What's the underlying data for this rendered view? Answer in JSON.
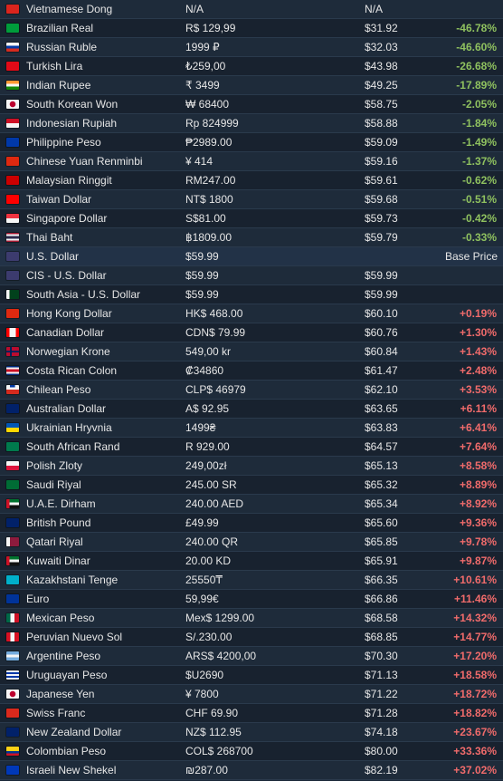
{
  "rows": [
    {
      "flag": "vn",
      "name": "Vietnamese Dong",
      "local": "N/A",
      "usd": "N/A",
      "diff": "",
      "color": "#da251d"
    },
    {
      "flag": "br",
      "name": "Brazilian Real",
      "local": "R$ 129,99",
      "usd": "$31.92",
      "diff": "-46.78%",
      "color": "#009c3b"
    },
    {
      "flag": "ru",
      "name": "Russian Ruble",
      "local": "1999 ₽",
      "usd": "$32.03",
      "diff": "-46.60%",
      "color": "#0039a6"
    },
    {
      "flag": "tr",
      "name": "Turkish Lira",
      "local": "₺259,00",
      "usd": "$43.98",
      "diff": "-26.68%",
      "color": "#e30a17"
    },
    {
      "flag": "in",
      "name": "Indian Rupee",
      "local": "₹ 3499",
      "usd": "$49.25",
      "diff": "-17.89%",
      "color": "#ff9933"
    },
    {
      "flag": "kr",
      "name": "South Korean Won",
      "local": "₩ 68400",
      "usd": "$58.75",
      "diff": "-2.05%",
      "color": "#f5f5f5"
    },
    {
      "flag": "id",
      "name": "Indonesian Rupiah",
      "local": "Rp 824999",
      "usd": "$58.88",
      "diff": "-1.84%",
      "color": "#ce1126"
    },
    {
      "flag": "ph",
      "name": "Philippine Peso",
      "local": "₱2989.00",
      "usd": "$59.09",
      "diff": "-1.49%",
      "color": "#0038a8"
    },
    {
      "flag": "cn",
      "name": "Chinese Yuan Renminbi",
      "local": "¥ 414",
      "usd": "$59.16",
      "diff": "-1.37%",
      "color": "#de2910"
    },
    {
      "flag": "my",
      "name": "Malaysian Ringgit",
      "local": "RM247.00",
      "usd": "$59.61",
      "diff": "-0.62%",
      "color": "#cc0001"
    },
    {
      "flag": "tw",
      "name": "Taiwan Dollar",
      "local": "NT$ 1800",
      "usd": "$59.68",
      "diff": "-0.51%",
      "color": "#fe0000"
    },
    {
      "flag": "sg",
      "name": "Singapore Dollar",
      "local": "S$81.00",
      "usd": "$59.73",
      "diff": "-0.42%",
      "color": "#ef3340"
    },
    {
      "flag": "th",
      "name": "Thai Baht",
      "local": "฿1809.00",
      "usd": "$59.79",
      "diff": "-0.33%",
      "color": "#2d2a4a"
    },
    {
      "flag": "us",
      "name": "U.S. Dollar",
      "local": "$59.99",
      "usd": "",
      "diff": "Base Price",
      "color": "#3c3b6e",
      "base": true
    },
    {
      "flag": "cis",
      "name": "CIS - U.S. Dollar",
      "local": "$59.99",
      "usd": "$59.99",
      "diff": "",
      "color": "#3c3b6e"
    },
    {
      "flag": "pk",
      "name": "South Asia - U.S. Dollar",
      "local": "$59.99",
      "usd": "$59.99",
      "diff": "",
      "color": "#01411c"
    },
    {
      "flag": "hk",
      "name": "Hong Kong Dollar",
      "local": "HK$ 468.00",
      "usd": "$60.10",
      "diff": "+0.19%",
      "color": "#de2910"
    },
    {
      "flag": "ca",
      "name": "Canadian Dollar",
      "local": "CDN$ 79.99",
      "usd": "$60.76",
      "diff": "+1.30%",
      "color": "#ff0000"
    },
    {
      "flag": "no",
      "name": "Norwegian Krone",
      "local": "549,00 kr",
      "usd": "$60.84",
      "diff": "+1.43%",
      "color": "#ba0c2f"
    },
    {
      "flag": "cr",
      "name": "Costa Rican Colon",
      "local": "₡34860",
      "usd": "$61.47",
      "diff": "+2.48%",
      "color": "#002b7f"
    },
    {
      "flag": "cl",
      "name": "Chilean Peso",
      "local": "CLP$ 46979",
      "usd": "$62.10",
      "diff": "+3.53%",
      "color": "#d52b1e"
    },
    {
      "flag": "au",
      "name": "Australian Dollar",
      "local": "A$ 92.95",
      "usd": "$63.65",
      "diff": "+6.11%",
      "color": "#012169"
    },
    {
      "flag": "ua",
      "name": "Ukrainian Hryvnia",
      "local": "1499₴",
      "usd": "$63.83",
      "diff": "+6.41%",
      "color": "#0057b7"
    },
    {
      "flag": "za",
      "name": "South African Rand",
      "local": "R 929.00",
      "usd": "$64.57",
      "diff": "+7.64%",
      "color": "#007a4d"
    },
    {
      "flag": "pl",
      "name": "Polish Zloty",
      "local": "249,00zł",
      "usd": "$65.13",
      "diff": "+8.58%",
      "color": "#dc143c"
    },
    {
      "flag": "sa",
      "name": "Saudi Riyal",
      "local": "245.00 SR",
      "usd": "$65.32",
      "diff": "+8.89%",
      "color": "#006c35"
    },
    {
      "flag": "ae",
      "name": "U.A.E. Dirham",
      "local": "240.00 AED",
      "usd": "$65.34",
      "diff": "+8.92%",
      "color": "#00732f"
    },
    {
      "flag": "gb",
      "name": "British Pound",
      "local": "£49.99",
      "usd": "$65.60",
      "diff": "+9.36%",
      "color": "#012169"
    },
    {
      "flag": "qa",
      "name": "Qatari Riyal",
      "local": "240.00 QR",
      "usd": "$65.85",
      "diff": "+9.78%",
      "color": "#8d1b3d"
    },
    {
      "flag": "kw",
      "name": "Kuwaiti Dinar",
      "local": "20.00 KD",
      "usd": "$65.91",
      "diff": "+9.87%",
      "color": "#007a3d"
    },
    {
      "flag": "kz",
      "name": "Kazakhstani Tenge",
      "local": "25550₸",
      "usd": "$66.35",
      "diff": "+10.61%",
      "color": "#00afca"
    },
    {
      "flag": "eu",
      "name": "Euro",
      "local": "59,99€",
      "usd": "$66.86",
      "diff": "+11.46%",
      "color": "#003399"
    },
    {
      "flag": "mx",
      "name": "Mexican Peso",
      "local": "Mex$ 1299.00",
      "usd": "$68.58",
      "diff": "+14.32%",
      "color": "#006847"
    },
    {
      "flag": "pe",
      "name": "Peruvian Nuevo Sol",
      "local": "S/.230.00",
      "usd": "$68.85",
      "diff": "+14.77%",
      "color": "#d91023"
    },
    {
      "flag": "ar",
      "name": "Argentine Peso",
      "local": "ARS$ 4200,00",
      "usd": "$70.30",
      "diff": "+17.20%",
      "color": "#74acdf"
    },
    {
      "flag": "uy",
      "name": "Uruguayan Peso",
      "local": "$U2690",
      "usd": "$71.13",
      "diff": "+18.58%",
      "color": "#0038a8"
    },
    {
      "flag": "jp",
      "name": "Japanese Yen",
      "local": "¥ 7800",
      "usd": "$71.22",
      "diff": "+18.72%",
      "color": "#f5f5f5"
    },
    {
      "flag": "ch",
      "name": "Swiss Franc",
      "local": "CHF 69.90",
      "usd": "$71.28",
      "diff": "+18.82%",
      "color": "#da291c"
    },
    {
      "flag": "nz",
      "name": "New Zealand Dollar",
      "local": "NZ$ 112.95",
      "usd": "$74.18",
      "diff": "+23.67%",
      "color": "#012169"
    },
    {
      "flag": "co",
      "name": "Colombian Peso",
      "local": "COL$ 268700",
      "usd": "$80.00",
      "diff": "+33.36%",
      "color": "#fcd116"
    },
    {
      "flag": "il",
      "name": "Israeli New Shekel",
      "local": "₪287.00",
      "usd": "$82.19",
      "diff": "+37.02%",
      "color": "#0038b8"
    }
  ]
}
